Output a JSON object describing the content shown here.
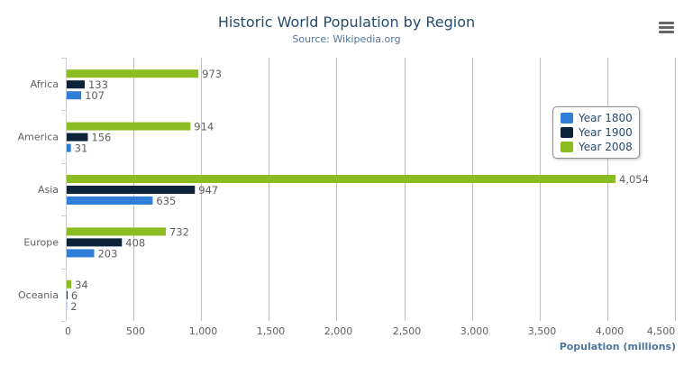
{
  "chart_data": {
    "type": "bar",
    "orientation": "horizontal",
    "title": "Historic World Population by Region",
    "subtitle": "Source: Wikipedia.org",
    "categories": [
      "Africa",
      "America",
      "Asia",
      "Europe",
      "Oceania"
    ],
    "series": [
      {
        "name": "Year 1800",
        "color": "#2f7ed8",
        "values": [
          107,
          31,
          635,
          203,
          2
        ]
      },
      {
        "name": "Year 1900",
        "color": "#0d233a",
        "values": [
          133,
          156,
          947,
          408,
          6
        ]
      },
      {
        "name": "Year 2008",
        "color": "#8bbc21",
        "values": [
          973,
          914,
          4054,
          732,
          34
        ]
      }
    ],
    "data_labels": [
      "107",
      "31",
      "635",
      "203",
      "2",
      "133",
      "156",
      "947",
      "408",
      "6",
      "973",
      "914",
      "4,054",
      "732",
      "34"
    ],
    "xlabel": "Population (millions)",
    "xlim": [
      0,
      4500
    ],
    "ticks": [
      "0",
      "500",
      "1,000",
      "1,500",
      "2,000",
      "2,500",
      "3,000",
      "3,500",
      "4,000",
      "4,500"
    ],
    "grid": true,
    "legend_position": "right"
  },
  "menu_icon": "hamburger-menu-icon"
}
